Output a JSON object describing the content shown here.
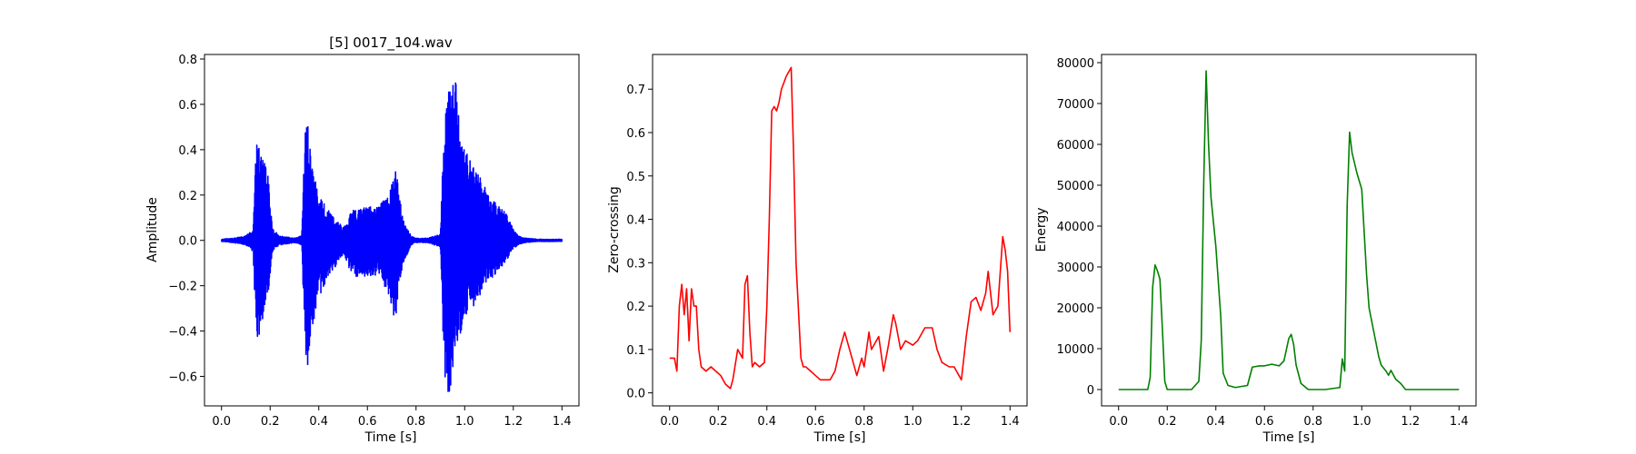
{
  "figure": {
    "background": "#ffffff"
  },
  "chart_data": [
    {
      "type": "line",
      "title": "[5] 0017_104.wav",
      "xlabel": "Time [s]",
      "ylabel": "Amplitude",
      "color": "#0000ff",
      "xlim": [
        -0.07,
        1.47
      ],
      "ylim": [
        -0.73,
        0.82
      ],
      "xticks": [
        0.0,
        0.2,
        0.4,
        0.6,
        0.8,
        1.0,
        1.2,
        1.4
      ],
      "xtick_labels": [
        "0.0",
        "0.2",
        "0.4",
        "0.6",
        "0.8",
        "1.0",
        "1.2",
        "1.4"
      ],
      "yticks": [
        -0.6,
        -0.4,
        -0.2,
        0.0,
        0.2,
        0.4,
        0.6,
        0.8
      ],
      "ytick_labels": [
        "−0.6",
        "−0.4",
        "−0.2",
        "0.0",
        "0.2",
        "0.4",
        "0.6",
        "0.8"
      ],
      "envelope": {
        "t": [
          0.0,
          0.05,
          0.1,
          0.13,
          0.14,
          0.15,
          0.17,
          0.19,
          0.21,
          0.24,
          0.3,
          0.33,
          0.34,
          0.35,
          0.36,
          0.37,
          0.4,
          0.45,
          0.48,
          0.5,
          0.52,
          0.53,
          0.55,
          0.6,
          0.65,
          0.7,
          0.71,
          0.72,
          0.73,
          0.75,
          0.78,
          0.8,
          0.85,
          0.9,
          0.91,
          0.92,
          0.93,
          0.95,
          0.96,
          0.98,
          1.0,
          1.03,
          1.06,
          1.1,
          1.15,
          1.18,
          1.2,
          1.22,
          1.25,
          1.3,
          1.35,
          1.4
        ],
        "upper": [
          0.005,
          0.01,
          0.02,
          0.05,
          0.43,
          0.45,
          0.38,
          0.3,
          0.05,
          0.02,
          0.01,
          0.02,
          0.4,
          0.57,
          0.45,
          0.35,
          0.2,
          0.12,
          0.08,
          0.06,
          0.08,
          0.12,
          0.14,
          0.15,
          0.15,
          0.25,
          0.31,
          0.3,
          0.2,
          0.08,
          0.02,
          0.01,
          0.01,
          0.03,
          0.35,
          0.55,
          0.65,
          0.7,
          0.76,
          0.5,
          0.4,
          0.35,
          0.3,
          0.2,
          0.15,
          0.1,
          0.05,
          0.02,
          0.01,
          0.005,
          0.005,
          0.005
        ],
        "lower": [
          -0.005,
          -0.01,
          -0.02,
          -0.05,
          -0.35,
          -0.45,
          -0.35,
          -0.28,
          -0.05,
          -0.02,
          -0.01,
          -0.02,
          -0.4,
          -0.67,
          -0.5,
          -0.4,
          -0.25,
          -0.14,
          -0.1,
          -0.06,
          -0.1,
          -0.15,
          -0.16,
          -0.16,
          -0.15,
          -0.3,
          -0.35,
          -0.33,
          -0.2,
          -0.1,
          -0.02,
          -0.01,
          -0.01,
          -0.03,
          -0.4,
          -0.62,
          -0.72,
          -0.65,
          -0.5,
          -0.45,
          -0.35,
          -0.3,
          -0.25,
          -0.18,
          -0.12,
          -0.08,
          -0.04,
          -0.02,
          -0.01,
          -0.005,
          -0.005,
          -0.005
        ]
      }
    },
    {
      "type": "line",
      "title": "",
      "xlabel": "Time [s]",
      "ylabel": "Zero-crossing",
      "color": "#ff0000",
      "xlim": [
        -0.07,
        1.47
      ],
      "ylim": [
        -0.03,
        0.78
      ],
      "xticks": [
        0.0,
        0.2,
        0.4,
        0.6,
        0.8,
        1.0,
        1.2,
        1.4
      ],
      "xtick_labels": [
        "0.0",
        "0.2",
        "0.4",
        "0.6",
        "0.8",
        "1.0",
        "1.2",
        "1.4"
      ],
      "yticks": [
        0.0,
        0.1,
        0.2,
        0.3,
        0.4,
        0.5,
        0.6,
        0.7
      ],
      "ytick_labels": [
        "0.0",
        "0.1",
        "0.2",
        "0.3",
        "0.4",
        "0.5",
        "0.6",
        "0.7"
      ],
      "x": [
        0.0,
        0.02,
        0.03,
        0.04,
        0.05,
        0.06,
        0.07,
        0.08,
        0.09,
        0.1,
        0.11,
        0.12,
        0.13,
        0.15,
        0.17,
        0.19,
        0.21,
        0.23,
        0.25,
        0.26,
        0.28,
        0.3,
        0.31,
        0.32,
        0.33,
        0.34,
        0.35,
        0.37,
        0.39,
        0.4,
        0.41,
        0.42,
        0.43,
        0.44,
        0.45,
        0.46,
        0.48,
        0.5,
        0.51,
        0.52,
        0.54,
        0.55,
        0.56,
        0.58,
        0.6,
        0.62,
        0.64,
        0.66,
        0.68,
        0.7,
        0.72,
        0.73,
        0.75,
        0.77,
        0.79,
        0.8,
        0.82,
        0.83,
        0.85,
        0.86,
        0.88,
        0.9,
        0.92,
        0.93,
        0.95,
        0.97,
        1.0,
        1.02,
        1.05,
        1.08,
        1.1,
        1.12,
        1.15,
        1.17,
        1.19,
        1.2,
        1.22,
        1.24,
        1.26,
        1.28,
        1.3,
        1.31,
        1.33,
        1.35,
        1.37,
        1.38,
        1.39,
        1.4
      ],
      "y": [
        0.08,
        0.08,
        0.05,
        0.2,
        0.25,
        0.18,
        0.24,
        0.12,
        0.24,
        0.2,
        0.2,
        0.1,
        0.06,
        0.05,
        0.06,
        0.05,
        0.04,
        0.02,
        0.01,
        0.03,
        0.1,
        0.08,
        0.25,
        0.27,
        0.14,
        0.06,
        0.07,
        0.06,
        0.07,
        0.2,
        0.4,
        0.65,
        0.66,
        0.65,
        0.67,
        0.7,
        0.73,
        0.75,
        0.55,
        0.3,
        0.08,
        0.06,
        0.06,
        0.05,
        0.04,
        0.03,
        0.03,
        0.03,
        0.05,
        0.1,
        0.14,
        0.12,
        0.08,
        0.04,
        0.08,
        0.06,
        0.14,
        0.1,
        0.12,
        0.13,
        0.05,
        0.11,
        0.18,
        0.16,
        0.1,
        0.12,
        0.11,
        0.12,
        0.15,
        0.15,
        0.1,
        0.07,
        0.06,
        0.06,
        0.04,
        0.03,
        0.13,
        0.21,
        0.22,
        0.19,
        0.23,
        0.28,
        0.18,
        0.2,
        0.36,
        0.33,
        0.28,
        0.14
      ]
    },
    {
      "type": "line",
      "title": "",
      "xlabel": "Time [s]",
      "ylabel": "Energy",
      "color": "#008000",
      "xlim": [
        -0.07,
        1.47
      ],
      "ylim": [
        -4000,
        82000
      ],
      "xticks": [
        0.0,
        0.2,
        0.4,
        0.6,
        0.8,
        1.0,
        1.2,
        1.4
      ],
      "xtick_labels": [
        "0.0",
        "0.2",
        "0.4",
        "0.6",
        "0.8",
        "1.0",
        "1.2",
        "1.4"
      ],
      "yticks": [
        0,
        10000,
        20000,
        30000,
        40000,
        50000,
        60000,
        70000,
        80000
      ],
      "ytick_labels": [
        "0",
        "10000",
        "20000",
        "30000",
        "40000",
        "50000",
        "60000",
        "70000",
        "80000"
      ],
      "x": [
        0.0,
        0.05,
        0.12,
        0.13,
        0.14,
        0.15,
        0.16,
        0.17,
        0.18,
        0.19,
        0.2,
        0.22,
        0.3,
        0.33,
        0.34,
        0.35,
        0.36,
        0.37,
        0.38,
        0.4,
        0.42,
        0.43,
        0.45,
        0.48,
        0.53,
        0.55,
        0.58,
        0.6,
        0.63,
        0.66,
        0.68,
        0.7,
        0.71,
        0.72,
        0.73,
        0.75,
        0.78,
        0.85,
        0.91,
        0.92,
        0.93,
        0.94,
        0.95,
        0.96,
        0.98,
        1.0,
        1.02,
        1.03,
        1.05,
        1.07,
        1.08,
        1.1,
        1.11,
        1.12,
        1.14,
        1.16,
        1.18,
        1.2,
        1.3,
        1.4
      ],
      "y": [
        0,
        0,
        0,
        3000,
        25000,
        30500,
        29000,
        27000,
        15000,
        2000,
        0,
        0,
        0,
        2000,
        12000,
        50000,
        78000,
        60000,
        47000,
        35000,
        18000,
        4000,
        1000,
        500,
        1000,
        5500,
        5800,
        5800,
        6200,
        5800,
        7000,
        12500,
        13500,
        11000,
        6000,
        1500,
        0,
        0,
        500,
        7500,
        4500,
        45000,
        63000,
        58000,
        53000,
        49000,
        28000,
        20000,
        14000,
        8000,
        6000,
        4500,
        3500,
        4700,
        2500,
        1500,
        0,
        0,
        0,
        0
      ]
    }
  ]
}
